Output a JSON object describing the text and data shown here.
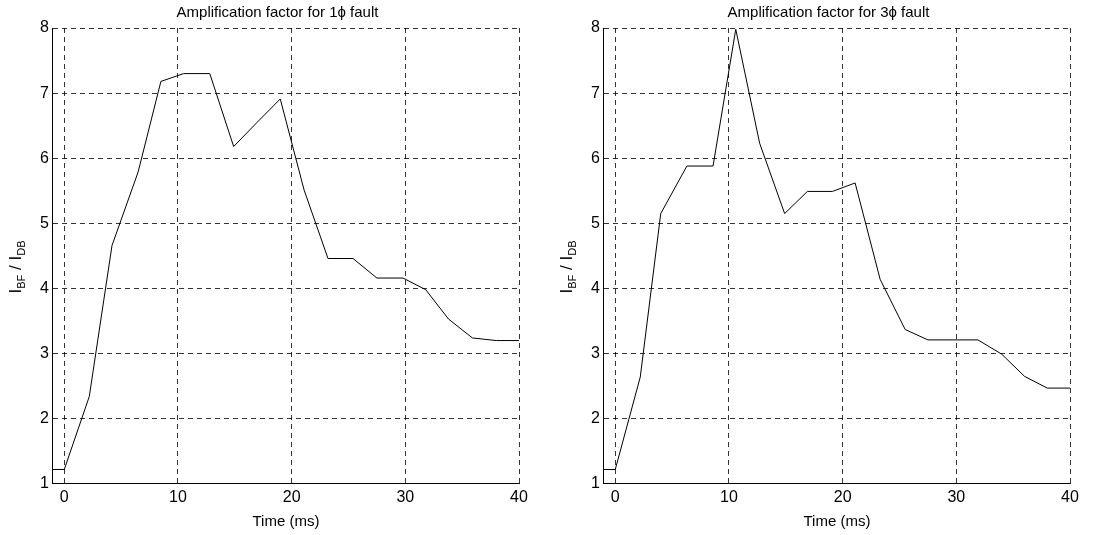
{
  "chart_data": [
    {
      "type": "line",
      "title": "Amplification factor for 1ϕ fault",
      "xlabel": "Time (ms)",
      "ylabel": "I$_{BF}$ / I$_{DB}$",
      "color": "#000000",
      "marker": "none",
      "grid": true,
      "xlim": [
        -1,
        40
      ],
      "ylim": [
        1,
        8
      ],
      "xticks": [
        0,
        10,
        20,
        30,
        40
      ],
      "yticks": [
        1,
        2,
        3,
        4,
        5,
        6,
        7,
        8
      ],
      "x": [
        -1,
        0,
        2.2,
        4.2,
        6.5,
        8.5,
        10.5,
        12.8,
        14.9,
        16.9,
        19,
        21.1,
        23.2,
        25.4,
        27.5,
        29.8,
        31.8,
        33.8,
        35.9,
        38,
        40
      ],
      "values": [
        1.22,
        1.22,
        2.34,
        4.66,
        5.79,
        7.18,
        7.3,
        7.3,
        6.18,
        6.54,
        6.91,
        5.51,
        4.46,
        4.46,
        4.16,
        4.16,
        3.98,
        3.53,
        3.24,
        3.2,
        3.2
      ]
    },
    {
      "type": "line",
      "title": "Amplification factor for 3ϕ fault",
      "xlabel": "Time (ms)",
      "ylabel": "I$_{BF}$ / I$_{DB}$",
      "color": "#000000",
      "marker": "none",
      "grid": true,
      "xlim": [
        -1,
        40
      ],
      "ylim": [
        1,
        8
      ],
      "xticks": [
        0,
        10,
        20,
        30,
        40
      ],
      "yticks": [
        1,
        2,
        3,
        4,
        5,
        6,
        7,
        8
      ],
      "x": [
        -1,
        0,
        2.2,
        4,
        6.3,
        8.6,
        10.6,
        12.7,
        14.9,
        16.9,
        19.1,
        21.1,
        23.3,
        25.5,
        27.5,
        31.9,
        34,
        36,
        38,
        40
      ],
      "values": [
        1.22,
        1.22,
        2.64,
        5.15,
        5.88,
        5.88,
        7.98,
        6.23,
        5.15,
        5.49,
        5.49,
        5.62,
        4.14,
        3.37,
        3.21,
        3.21,
        2.99,
        2.65,
        2.47,
        2.47
      ]
    }
  ]
}
